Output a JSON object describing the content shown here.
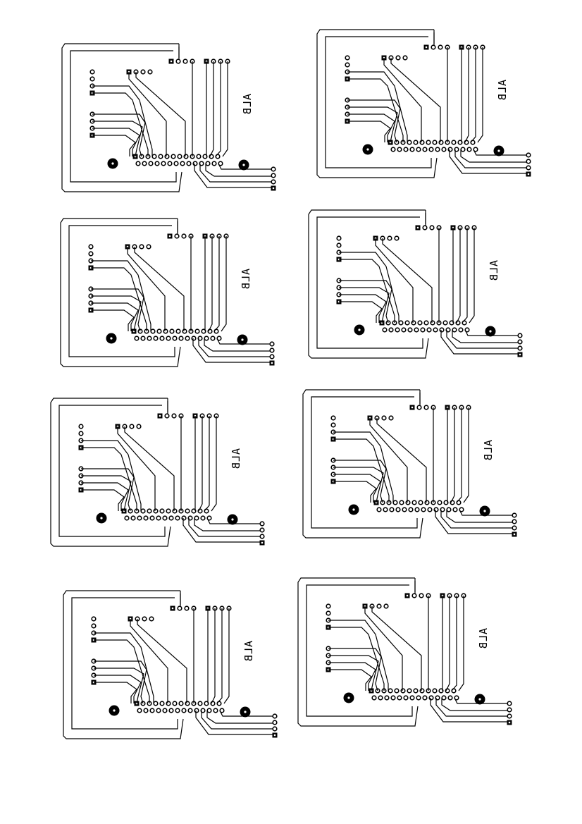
{
  "sheet": {
    "background": "#ffffff",
    "ink": "#000000",
    "boards": [
      {
        "id": 1,
        "label": "ALB"
      },
      {
        "id": 2,
        "label": "ALB"
      },
      {
        "id": 3,
        "label": "ALB"
      },
      {
        "id": 4,
        "label": "ALB"
      },
      {
        "id": 5,
        "label": "ALB"
      },
      {
        "id": 6,
        "label": "ALB"
      },
      {
        "id": 7,
        "label": "ALB"
      },
      {
        "id": 8,
        "label": "ALB"
      }
    ]
  }
}
